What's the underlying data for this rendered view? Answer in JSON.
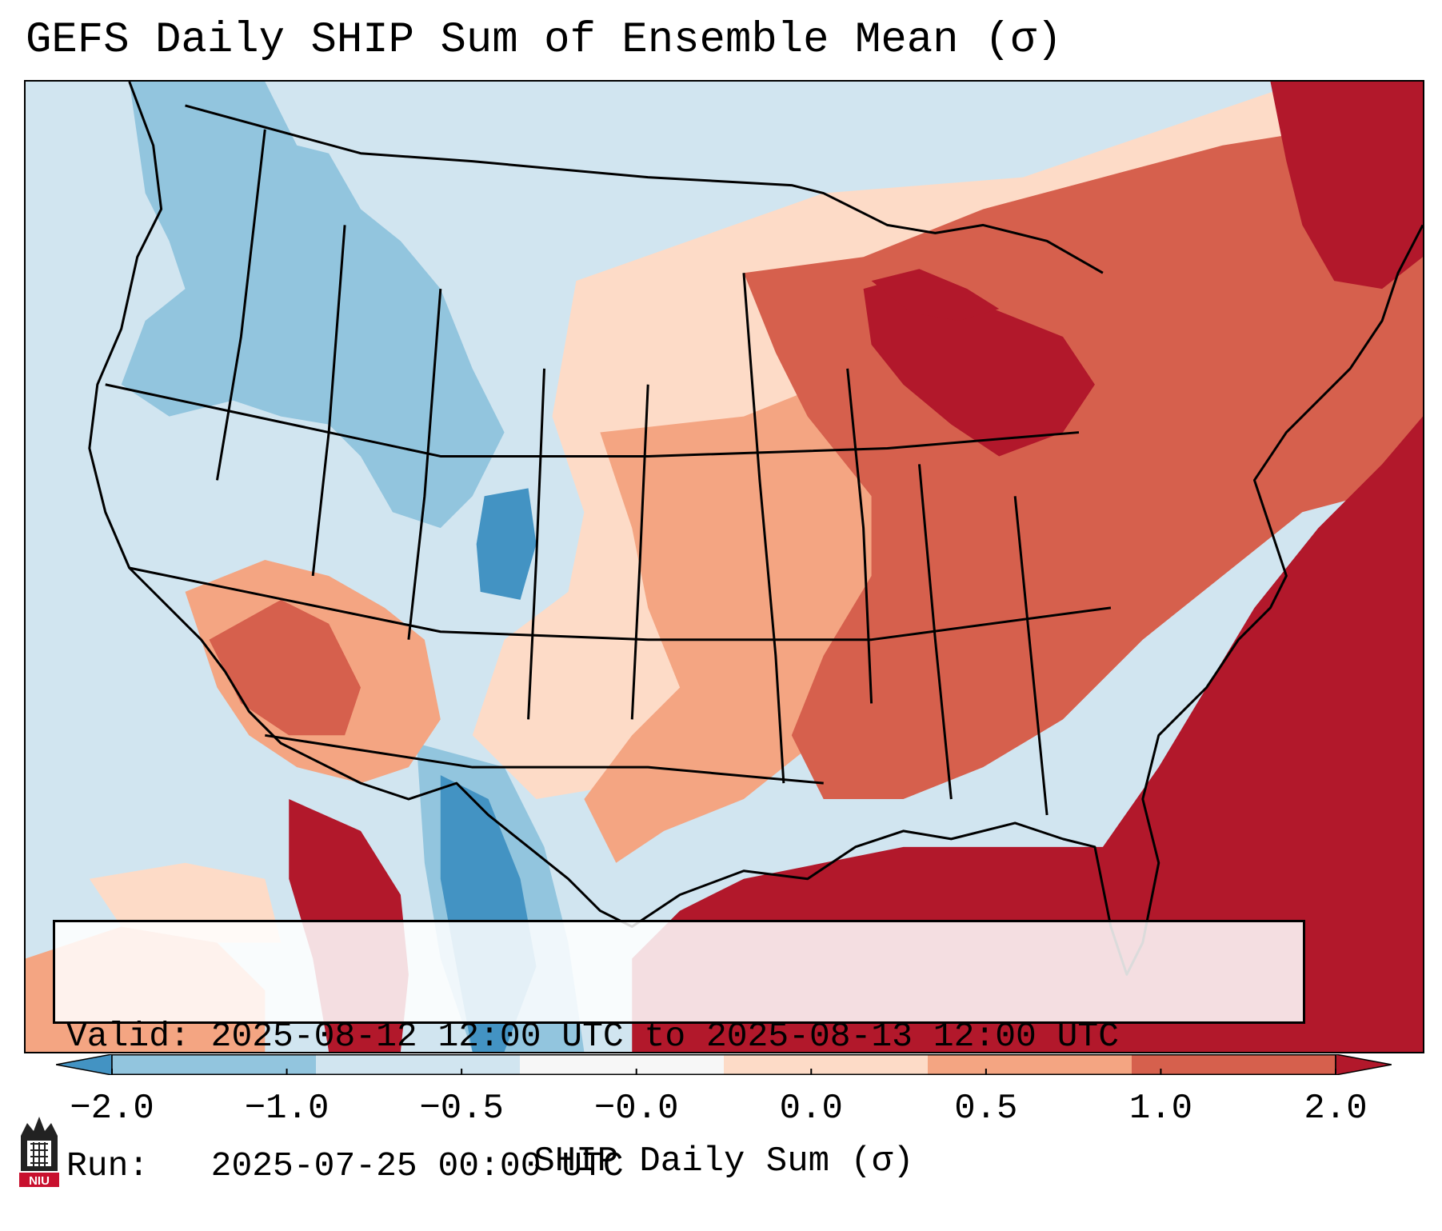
{
  "title": "GEFS Daily SHIP Sum of Ensemble Mean (σ)",
  "info": {
    "valid_label": "Valid:",
    "valid_value": "2025-08-12 12:00 UTC to 2025-08-13 12:00 UTC",
    "run_label": "Run:",
    "run_value": "2025-07-25 00:00 UTC"
  },
  "colorbar": {
    "label": "SHIP Daily Sum (σ)",
    "ticks": [
      "−2.0",
      "−1.0",
      "−0.5",
      "−0.0",
      "0.0",
      "0.5",
      "1.0",
      "2.0"
    ],
    "colors": [
      "#4393c3",
      "#92c5de",
      "#d1e5f0",
      "#f7f7f7",
      "#fddbc7",
      "#f4a582",
      "#d6604d",
      "#b2182b"
    ],
    "extend": "both"
  },
  "logo": {
    "text": "NIU",
    "colors": [
      "#c8102e",
      "#222222"
    ]
  },
  "map": {
    "projection": "Lambert conformal (CONUS)",
    "palette": {
      "ocean_west": "#d1e5f0",
      "strong_positive": "#b2182b",
      "positive": "#d6604d",
      "weak_positive": "#f4a582",
      "slight_positive": "#fddbc7",
      "slight_negative": "#d1e5f0",
      "negative": "#92c5de",
      "strong_negative": "#4393c3"
    }
  }
}
